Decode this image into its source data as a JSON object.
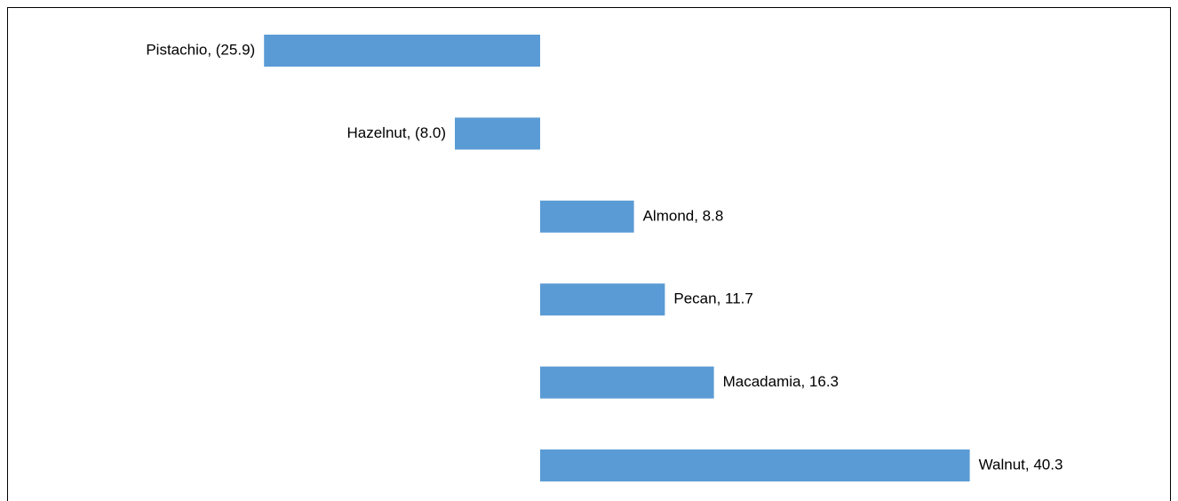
{
  "chart_data": {
    "type": "bar",
    "orientation": "horizontal",
    "color": "#5b9bd5",
    "values": [
      -25.9,
      -8.0,
      8.8,
      11.7,
      16.3,
      40.3
    ],
    "value_labels": [
      "Pistachio, (25.9)",
      "Hazelnut, (8.0)",
      "Almond, 8.8",
      "Pecan, 11.7",
      "Macadamia, 16.3",
      "Walnut, 40.3"
    ],
    "xlim": [
      -50,
      60
    ]
  }
}
